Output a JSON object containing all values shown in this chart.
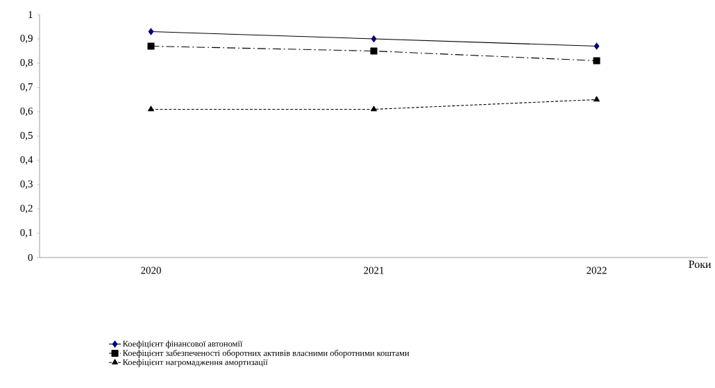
{
  "chart_data": {
    "type": "line",
    "xlabel": "Роки",
    "categories": [
      "2020",
      "2021",
      "2022"
    ],
    "series": [
      {
        "name": "Коефіцієнт фінансової автономії",
        "color": "#000000",
        "marker": "diamond",
        "line_style": "solid",
        "values": [
          0.93,
          0.9,
          0.87
        ]
      },
      {
        "name": "Коефіцієнт забезпеченості оборотних активів власними оборотними коштами",
        "color": "#000000",
        "marker": "square",
        "line_style": "dashdot",
        "values": [
          0.87,
          0.85,
          0.81
        ]
      },
      {
        "name": "Коефіцієнт нагромадження  амортизації",
        "color": "#000000",
        "marker": "triangle",
        "line_style": "dashed",
        "values": [
          0.61,
          0.61,
          0.65
        ]
      }
    ],
    "ylim": [
      0,
      1
    ],
    "yticks": [
      0,
      {
        "value": 0.1,
        "label": "0,1"
      },
      {
        "value": 0.2,
        "label": "0,2"
      },
      {
        "value": 0.3,
        "label": "0,3"
      },
      {
        "value": 0.4,
        "label": "0,4"
      },
      {
        "value": 0.5,
        "label": "0,5"
      },
      {
        "value": 0.6,
        "label": "0,6"
      },
      {
        "value": 0.7,
        "label": "0,7"
      },
      {
        "value": 0.8,
        "label": "0,8"
      },
      {
        "value": 0.9,
        "label": "0,9"
      },
      1
    ],
    "grid": false,
    "legend": "bottom"
  }
}
